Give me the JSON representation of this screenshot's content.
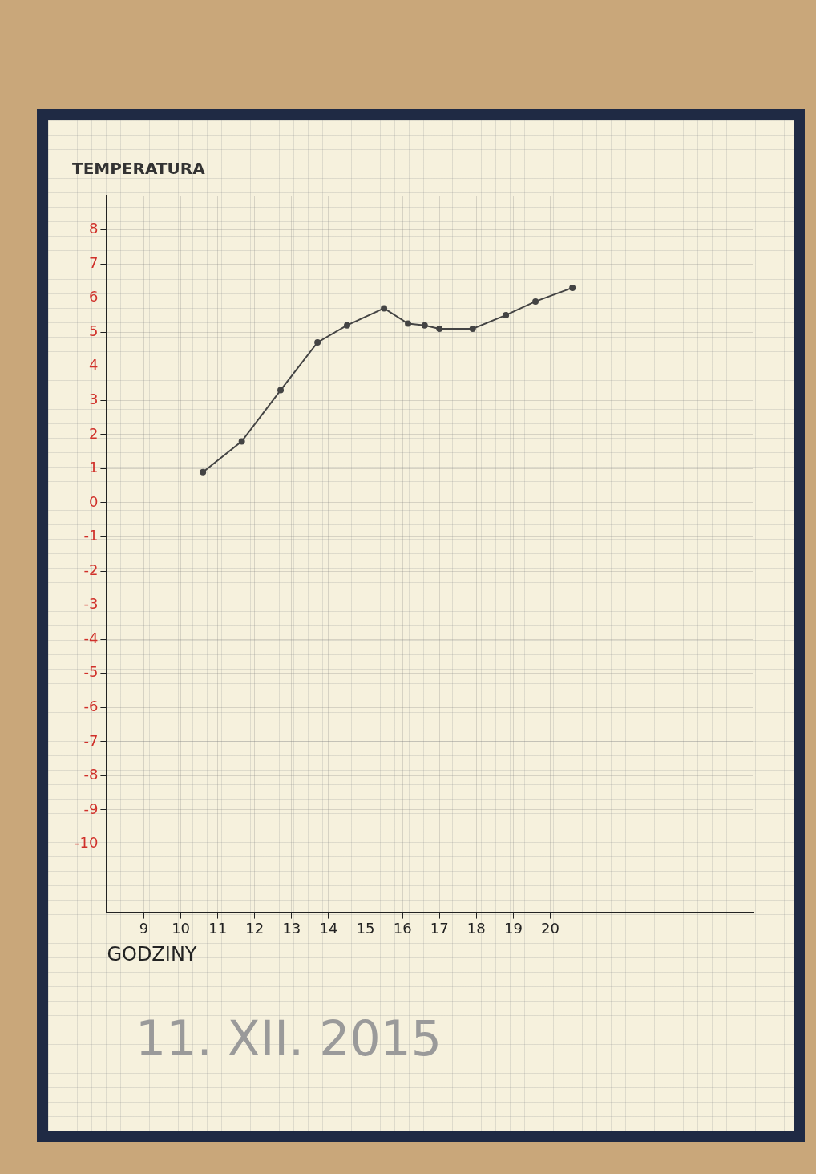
{
  "chart_data": {
    "type": "line",
    "y_label": "TEMPERATURA",
    "x_label": "GODZINY",
    "subtitle": "11. XII. 2015",
    "x": [
      10.6,
      11.65,
      12.7,
      13.7,
      14.5,
      15.5,
      16.15,
      16.6,
      17.0,
      17.9,
      18.8,
      19.6,
      20.6
    ],
    "values": [
      0.9,
      1.8,
      3.3,
      4.7,
      5.2,
      5.7,
      5.25,
      5.2,
      5.1,
      5.1,
      5.5,
      5.9,
      6.3
    ],
    "color": "#444444",
    "marker": "circle",
    "line_style": "solid",
    "xlim": [
      8,
      25.5
    ],
    "xticks": [
      9,
      10,
      11,
      12,
      13,
      14,
      15,
      16,
      17,
      18,
      19,
      20
    ],
    "ylim": [
      -12,
      9
    ],
    "yticks": [
      -10,
      -9,
      -8,
      -7,
      -6,
      -5,
      -4,
      -3,
      -2,
      -1,
      0,
      1,
      2,
      3,
      4,
      5,
      6,
      7,
      8
    ],
    "grid": true
  }
}
